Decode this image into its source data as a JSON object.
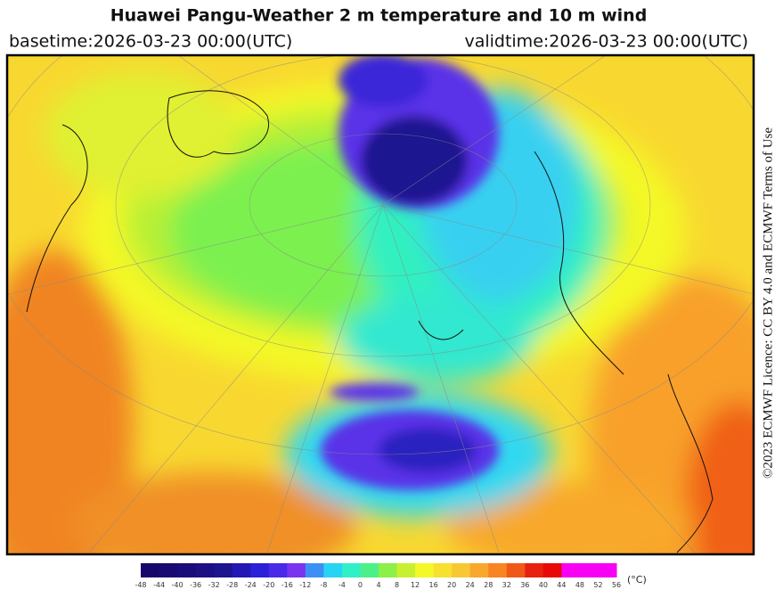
{
  "header": {
    "title": "Huawei Pangu-Weather  2 m temperature and 10 m wind",
    "basetime": "basetime:2026-03-23 00:00(UTC)",
    "validtime": "validtime:2026-03-23 00:00(UTC)"
  },
  "colorbar": {
    "ticks": [
      -48,
      -44,
      -40,
      -36,
      -32,
      -28,
      -24,
      -20,
      -16,
      -12,
      -8,
      -4,
      0,
      4,
      8,
      12,
      16,
      20,
      24,
      28,
      32,
      36,
      40,
      44,
      48,
      52,
      56
    ],
    "colors": [
      "#16086a",
      "#180a72",
      "#1a0c7a",
      "#1c1084",
      "#1e1490",
      "#2418b4",
      "#2c20d8",
      "#4a2ae8",
      "#7a34f0",
      "#3c90f4",
      "#28d4f4",
      "#30f0c8",
      "#4cf088",
      "#8cf048",
      "#c8f030",
      "#f4f828",
      "#f8e030",
      "#f8c834",
      "#f8a82c",
      "#f88424",
      "#f05818",
      "#e82010",
      "#e80808",
      "#f800f4",
      "#f800f4",
      "#f800f4"
    ],
    "unit": "(°C)"
  },
  "copyright": "©2023 ECMWF Licence: CC BY 4.0 and ECMWF Terms of Use"
}
